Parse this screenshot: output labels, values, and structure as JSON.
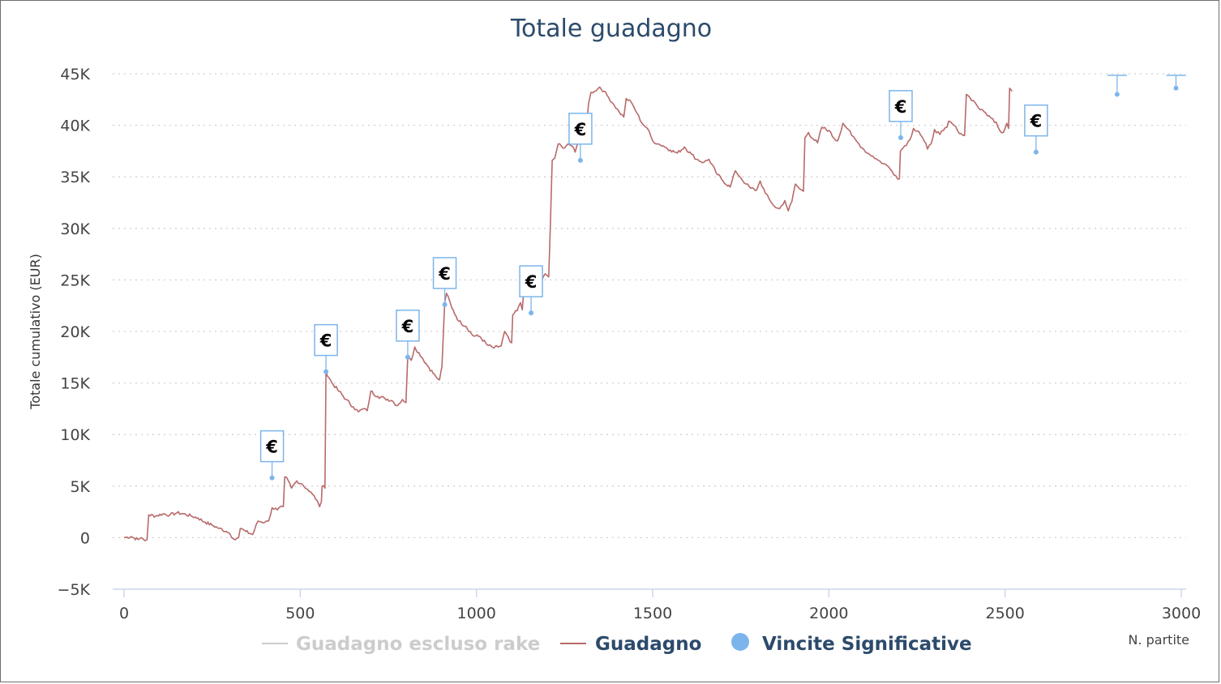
{
  "chart_data": {
    "type": "line",
    "title": "Totale guadagno",
    "xlabel": "N. partite",
    "ylabel": "Totale cumulativo (EUR)",
    "xlim": [
      0,
      3000
    ],
    "ylim": [
      -5000,
      45000
    ],
    "x_ticks": [
      0,
      500,
      1000,
      1500,
      2000,
      2500,
      3000
    ],
    "y_ticks": [
      -5000,
      0,
      5000,
      10000,
      15000,
      20000,
      25000,
      30000,
      35000,
      40000,
      45000
    ],
    "x_tick_labels": [
      "0",
      "500",
      "1000",
      "1500",
      "2000",
      "2500",
      "3000"
    ],
    "y_tick_labels": [
      "−5K",
      "0",
      "5K",
      "10K",
      "15K",
      "20K",
      "25K",
      "30K",
      "35K",
      "40K",
      "45K"
    ],
    "grid": "horizontal dotted",
    "legend_position": "bottom",
    "series": [
      {
        "name": "Guadagno escluso rake",
        "color": "#cccccc",
        "visible": false,
        "values": []
      },
      {
        "name": "Guadagno",
        "color": "#b86a6a",
        "visible": true,
        "points": [
          [
            0,
            0
          ],
          [
            20,
            100
          ],
          [
            40,
            -200
          ],
          [
            50,
            0
          ],
          [
            60,
            -300
          ],
          [
            65,
            -200
          ],
          [
            70,
            2200
          ],
          [
            90,
            2100
          ],
          [
            110,
            2300
          ],
          [
            130,
            2200
          ],
          [
            150,
            2400
          ],
          [
            170,
            2300
          ],
          [
            190,
            2100
          ],
          [
            210,
            1900
          ],
          [
            230,
            1500
          ],
          [
            250,
            1200
          ],
          [
            270,
            900
          ],
          [
            290,
            600
          ],
          [
            300,
            400
          ],
          [
            310,
            -100
          ],
          [
            325,
            0
          ],
          [
            330,
            900
          ],
          [
            345,
            600
          ],
          [
            365,
            300
          ],
          [
            380,
            1600
          ],
          [
            400,
            1500
          ],
          [
            410,
            1600
          ],
          [
            420,
            2900
          ],
          [
            435,
            2700
          ],
          [
            452,
            3000
          ],
          [
            456,
            5900
          ],
          [
            465,
            5600
          ],
          [
            475,
            4800
          ],
          [
            490,
            5500
          ],
          [
            505,
            5200
          ],
          [
            520,
            4700
          ],
          [
            535,
            4200
          ],
          [
            548,
            3600
          ],
          [
            555,
            3000
          ],
          [
            560,
            3500
          ],
          [
            562,
            5000
          ],
          [
            570,
            4800
          ],
          [
            573,
            16100
          ],
          [
            590,
            15000
          ],
          [
            610,
            14200
          ],
          [
            630,
            13400
          ],
          [
            650,
            12700
          ],
          [
            665,
            12200
          ],
          [
            680,
            12500
          ],
          [
            690,
            12300
          ],
          [
            700,
            14200
          ],
          [
            720,
            13700
          ],
          [
            740,
            13500
          ],
          [
            760,
            13300
          ],
          [
            775,
            12800
          ],
          [
            790,
            13400
          ],
          [
            800,
            13100
          ],
          [
            805,
            17500
          ],
          [
            815,
            17200
          ],
          [
            825,
            18500
          ],
          [
            845,
            17500
          ],
          [
            865,
            16500
          ],
          [
            885,
            15600
          ],
          [
            895,
            15300
          ],
          [
            902,
            16600
          ],
          [
            910,
            22800
          ],
          [
            915,
            23700
          ],
          [
            930,
            22300
          ],
          [
            950,
            21000
          ],
          [
            970,
            20500
          ],
          [
            990,
            19600
          ],
          [
            1010,
            19500
          ],
          [
            1030,
            18700
          ],
          [
            1050,
            18400
          ],
          [
            1070,
            18600
          ],
          [
            1080,
            20000
          ],
          [
            1095,
            19000
          ],
          [
            1100,
            18900
          ],
          [
            1103,
            21600
          ],
          [
            1115,
            22000
          ],
          [
            1125,
            22800
          ],
          [
            1130,
            22100
          ],
          [
            1135,
            24300
          ],
          [
            1150,
            25300
          ],
          [
            1165,
            25000
          ],
          [
            1185,
            24900
          ],
          [
            1195,
            25600
          ],
          [
            1205,
            25300
          ],
          [
            1210,
            30500
          ],
          [
            1215,
            36600
          ],
          [
            1222,
            36800
          ],
          [
            1232,
            38200
          ],
          [
            1245,
            37800
          ],
          [
            1260,
            38200
          ],
          [
            1270,
            38000
          ],
          [
            1280,
            37400
          ],
          [
            1290,
            38500
          ],
          [
            1300,
            39000
          ],
          [
            1310,
            38800
          ],
          [
            1318,
            42100
          ],
          [
            1325,
            43200
          ],
          [
            1335,
            43300
          ],
          [
            1350,
            43700
          ],
          [
            1362,
            43300
          ],
          [
            1375,
            42700
          ],
          [
            1390,
            42000
          ],
          [
            1405,
            41300
          ],
          [
            1418,
            40800
          ],
          [
            1425,
            42600
          ],
          [
            1440,
            42200
          ],
          [
            1455,
            41200
          ],
          [
            1470,
            40200
          ],
          [
            1485,
            39700
          ],
          [
            1500,
            38500
          ],
          [
            1515,
            38200
          ],
          [
            1530,
            38000
          ],
          [
            1550,
            37600
          ],
          [
            1570,
            37300
          ],
          [
            1590,
            37900
          ],
          [
            1610,
            37200
          ],
          [
            1625,
            36700
          ],
          [
            1645,
            36400
          ],
          [
            1660,
            36700
          ],
          [
            1680,
            35400
          ],
          [
            1700,
            34600
          ],
          [
            1720,
            34000
          ],
          [
            1735,
            35600
          ],
          [
            1750,
            34900
          ],
          [
            1765,
            34300
          ],
          [
            1778,
            33900
          ],
          [
            1795,
            33700
          ],
          [
            1805,
            34600
          ],
          [
            1820,
            33400
          ],
          [
            1835,
            32600
          ],
          [
            1850,
            32000
          ],
          [
            1860,
            31900
          ],
          [
            1875,
            32700
          ],
          [
            1885,
            31700
          ],
          [
            1895,
            32600
          ],
          [
            1905,
            34300
          ],
          [
            1918,
            33800
          ],
          [
            1928,
            33600
          ],
          [
            1932,
            38800
          ],
          [
            1942,
            39300
          ],
          [
            1955,
            38700
          ],
          [
            1968,
            38300
          ],
          [
            1980,
            39800
          ],
          [
            2000,
            39500
          ],
          [
            2015,
            38700
          ],
          [
            2025,
            38500
          ],
          [
            2040,
            40200
          ],
          [
            2055,
            39600
          ],
          [
            2065,
            39000
          ],
          [
            2080,
            38400
          ],
          [
            2095,
            37800
          ],
          [
            2110,
            37300
          ],
          [
            2125,
            37000
          ],
          [
            2140,
            36600
          ],
          [
            2155,
            36300
          ],
          [
            2165,
            36100
          ],
          [
            2180,
            35500
          ],
          [
            2190,
            35100
          ],
          [
            2200,
            34800
          ],
          [
            2203,
            37500
          ],
          [
            2215,
            38000
          ],
          [
            2230,
            38600
          ],
          [
            2240,
            39700
          ],
          [
            2255,
            39400
          ],
          [
            2270,
            38500
          ],
          [
            2280,
            37700
          ],
          [
            2290,
            38200
          ],
          [
            2300,
            39600
          ],
          [
            2315,
            39100
          ],
          [
            2325,
            39500
          ],
          [
            2335,
            39800
          ],
          [
            2340,
            40400
          ],
          [
            2355,
            40000
          ],
          [
            2365,
            39500
          ],
          [
            2375,
            39200
          ],
          [
            2385,
            39000
          ],
          [
            2390,
            43000
          ],
          [
            2400,
            42700
          ],
          [
            2415,
            42200
          ],
          [
            2430,
            41500
          ],
          [
            2445,
            41200
          ],
          [
            2460,
            40700
          ],
          [
            2475,
            40300
          ],
          [
            2485,
            39500
          ],
          [
            2495,
            39300
          ],
          [
            2505,
            40200
          ],
          [
            2510,
            39700
          ],
          [
            2513,
            43600
          ],
          [
            2520,
            43300
          ]
        ]
      },
      {
        "name": "Vincite Significative",
        "color": "#7cb5ec",
        "visible": true,
        "marker_label": "€",
        "points": [
          [
            420,
            5800
          ],
          [
            573,
            16100
          ],
          [
            805,
            17500
          ],
          [
            910,
            22600
          ],
          [
            1155,
            21800
          ],
          [
            1295,
            36600
          ],
          [
            2204,
            38800
          ],
          [
            2588,
            37400
          ],
          [
            2818,
            43000
          ],
          [
            2985,
            43600
          ]
        ]
      }
    ]
  }
}
